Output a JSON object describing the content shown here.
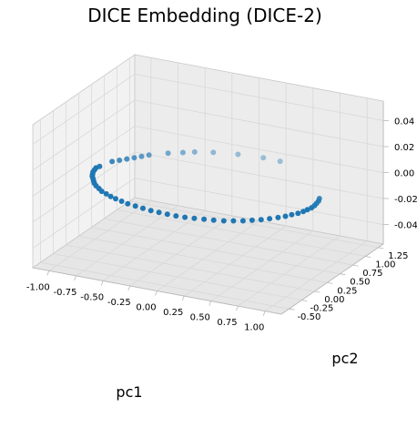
{
  "chart_data": {
    "type": "scatter",
    "projection": "3d",
    "title": "DICE Embedding (DICE-2)",
    "xlabel": "pc1",
    "ylabel": "pc2",
    "zlabel": "",
    "xlim": [
      -1.15,
      1.15
    ],
    "ylim": [
      -0.65,
      1.35
    ],
    "zlim": [
      -0.055,
      0.055
    ],
    "xticks": [
      "-1.00",
      "-0.75",
      "-0.50",
      "-0.25",
      "0.00",
      "0.25",
      "0.50",
      "0.75",
      "1.00"
    ],
    "yticks": [
      "-0.50",
      "-0.25",
      "0.00",
      "0.25",
      "0.50",
      "0.75",
      "1.00",
      "1.25"
    ],
    "zticks": [
      "-0.04",
      "-0.02",
      "0.00",
      "0.02",
      "0.04"
    ],
    "xtick_values": [
      -1.0,
      -0.75,
      -0.5,
      -0.25,
      0.0,
      0.25,
      0.5,
      0.75,
      1.0
    ],
    "ytick_values": [
      -0.5,
      -0.25,
      0.0,
      0.25,
      0.5,
      0.75,
      1.0,
      1.25
    ],
    "ztick_values": [
      -0.04,
      -0.02,
      0.0,
      0.02,
      0.04
    ],
    "grid": true,
    "point_color": "#1f77b4",
    "series": [
      {
        "points": [
          [
            -0.98,
            0.3,
            0
          ],
          [
            -0.99,
            0.25,
            0
          ],
          [
            -0.98,
            0.2,
            0
          ],
          [
            -0.97,
            0.15,
            0
          ],
          [
            -0.95,
            0.1,
            0
          ],
          [
            -0.93,
            0.05,
            0
          ],
          [
            -0.9,
            0.0,
            0
          ],
          [
            -0.87,
            -0.05,
            0
          ],
          [
            -0.84,
            -0.1,
            0
          ],
          [
            -0.8,
            -0.15,
            0
          ],
          [
            -0.75,
            -0.2,
            0
          ],
          [
            -0.7,
            -0.25,
            0
          ],
          [
            -0.64,
            -0.29,
            0
          ],
          [
            -0.58,
            -0.33,
            0
          ],
          [
            -0.52,
            -0.36,
            0
          ],
          [
            -0.45,
            -0.39,
            0
          ],
          [
            -0.38,
            -0.42,
            0
          ],
          [
            -0.3,
            -0.44,
            0
          ],
          [
            -0.22,
            -0.46,
            0
          ],
          [
            -0.14,
            -0.475,
            0
          ],
          [
            -0.06,
            -0.485,
            0
          ],
          [
            0.02,
            -0.49,
            0
          ],
          [
            0.1,
            -0.49,
            0
          ],
          [
            0.18,
            -0.485,
            0
          ],
          [
            0.26,
            -0.47,
            0
          ],
          [
            0.34,
            -0.45,
            0
          ],
          [
            0.42,
            -0.43,
            0
          ],
          [
            0.5,
            -0.4,
            0
          ],
          [
            0.57,
            -0.36,
            0
          ],
          [
            0.64,
            -0.32,
            0
          ],
          [
            0.7,
            -0.27,
            0
          ],
          [
            0.76,
            -0.22,
            0
          ],
          [
            0.81,
            -0.16,
            0
          ],
          [
            0.86,
            -0.1,
            0
          ],
          [
            0.9,
            -0.04,
            0
          ],
          [
            0.93,
            0.02,
            0
          ],
          [
            0.96,
            0.08,
            0
          ],
          [
            0.98,
            0.14,
            0
          ],
          [
            0.99,
            0.2,
            0
          ],
          [
            1.0,
            0.26,
            0
          ],
          [
            1.0,
            0.32,
            0
          ],
          [
            0.99,
            0.38,
            0
          ],
          [
            0.98,
            0.44,
            0
          ],
          [
            0.96,
            0.5,
            0
          ],
          [
            -0.94,
            0.46,
            0
          ],
          [
            -0.9,
            0.52,
            0
          ],
          [
            -0.86,
            0.58,
            0
          ],
          [
            -0.82,
            0.64,
            0
          ],
          [
            -0.78,
            0.7,
            0
          ],
          [
            -0.74,
            0.76,
            0
          ],
          [
            -0.62,
            0.88,
            0
          ],
          [
            -0.52,
            0.96,
            0
          ],
          [
            -0.44,
            1.02,
            0
          ],
          [
            -0.3,
            1.09,
            0
          ],
          [
            -0.1,
            1.15,
            0
          ],
          [
            0.12,
            1.18,
            0
          ],
          [
            0.28,
            1.17,
            0
          ]
        ]
      }
    ]
  }
}
